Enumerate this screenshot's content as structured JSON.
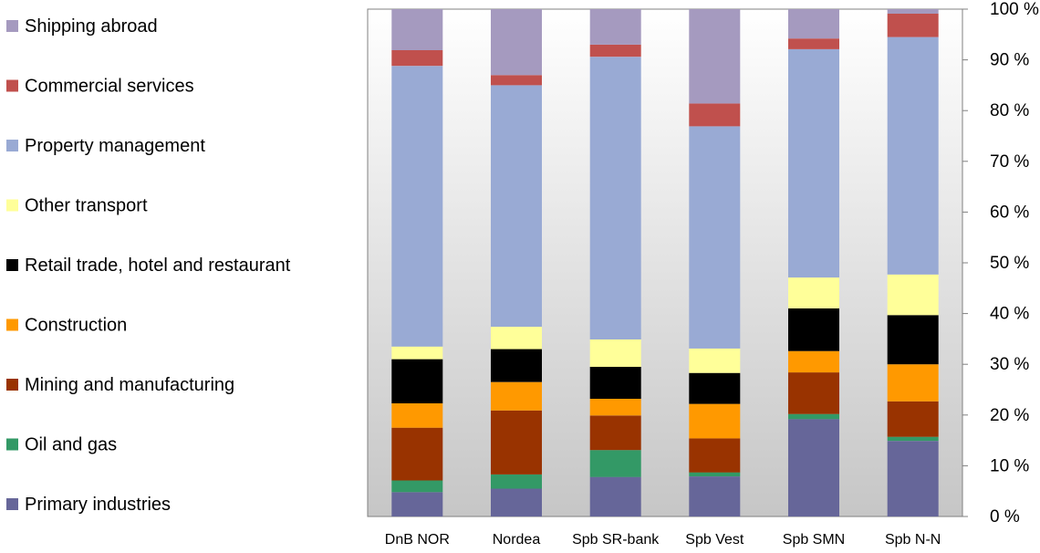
{
  "chart_data": {
    "type": "bar",
    "stacked": true,
    "percent": true,
    "categories": [
      "DnB NOR",
      "Nordea",
      "Spb SR-bank",
      "Spb Vest",
      "Spb SMN",
      "Spb N-N"
    ],
    "ylim": [
      0,
      100
    ],
    "y_ticks": [
      "0 %",
      "10 %",
      "20 %",
      "30 %",
      "40 %",
      "50 %",
      "60 %",
      "70 %",
      "80 %",
      "90 %",
      "100 %"
    ],
    "y_axis_side": "right",
    "background": "gradient-white-to-gray",
    "legend_position": "left",
    "legend_order": [
      "Shipping abroad",
      "Commercial services",
      "Property management",
      "Other transport",
      "Retail trade, hotel and restaurant",
      "Construction",
      "Mining and manufacturing",
      "Oil and gas",
      "Primary industries"
    ],
    "series": [
      {
        "name": "Primary industries",
        "color": "#666699",
        "values": [
          4.8,
          5.5,
          7.8,
          7.9,
          19.2,
          14.9
        ]
      },
      {
        "name": "Oil and gas",
        "color": "#339966",
        "values": [
          2.3,
          2.8,
          5.3,
          0.8,
          1.0,
          0.8
        ]
      },
      {
        "name": "Mining and manufacturing",
        "color": "#993300",
        "values": [
          10.4,
          12.6,
          6.8,
          6.7,
          8.2,
          7.0
        ]
      },
      {
        "name": "Construction",
        "color": "#ff9900",
        "values": [
          4.8,
          5.6,
          3.3,
          6.8,
          4.2,
          7.3
        ]
      },
      {
        "name": "Retail trade, hotel and restaurant",
        "color": "#000000",
        "values": [
          8.7,
          6.5,
          6.3,
          6.1,
          8.4,
          9.7
        ]
      },
      {
        "name": "Other transport",
        "color": "#ffff99",
        "values": [
          2.5,
          4.4,
          5.4,
          4.8,
          6.1,
          8.0
        ]
      },
      {
        "name": "Property management",
        "color": "#99aad4",
        "values": [
          55.3,
          47.6,
          55.7,
          43.8,
          45.0,
          46.8
        ]
      },
      {
        "name": "Commercial services",
        "color": "#c0504d",
        "values": [
          3.1,
          2.0,
          2.4,
          4.5,
          2.1,
          4.6
        ]
      },
      {
        "name": "Shipping abroad",
        "color": "#a59abf",
        "values": [
          8.1,
          13.0,
          7.0,
          18.6,
          5.8,
          0.9
        ]
      }
    ]
  }
}
